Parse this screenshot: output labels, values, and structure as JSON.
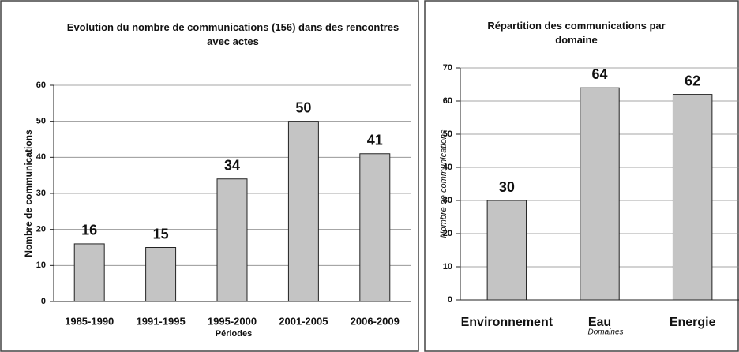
{
  "chart_data": [
    {
      "type": "bar",
      "title": "Evolution du nombre de communications (156) dans des rencontres avec actes",
      "ylabel": "Nombre de communications",
      "xlabel": "Périodes",
      "categories": [
        "1985-1990",
        "1991-1995",
        "1995-2000",
        "2001-2005",
        "2006-2009"
      ],
      "values": [
        16,
        15,
        34,
        50,
        41
      ],
      "color": "#c4c4c4",
      "ylim": [
        0,
        60
      ],
      "yticks": [
        0,
        10,
        20,
        30,
        40,
        50,
        60
      ],
      "grid": true
    },
    {
      "type": "bar",
      "title": "Répartition des communications par domaine",
      "ylabel": "Nombre de communications",
      "xlabel": "Domaines",
      "categories": [
        "Environnement",
        "Eau",
        "Energie"
      ],
      "values": [
        30,
        64,
        62
      ],
      "color": "#c4c4c4",
      "ylim": [
        0,
        70
      ],
      "yticks": [
        0,
        10,
        20,
        30,
        40,
        50,
        60,
        70
      ],
      "grid": true
    }
  ]
}
